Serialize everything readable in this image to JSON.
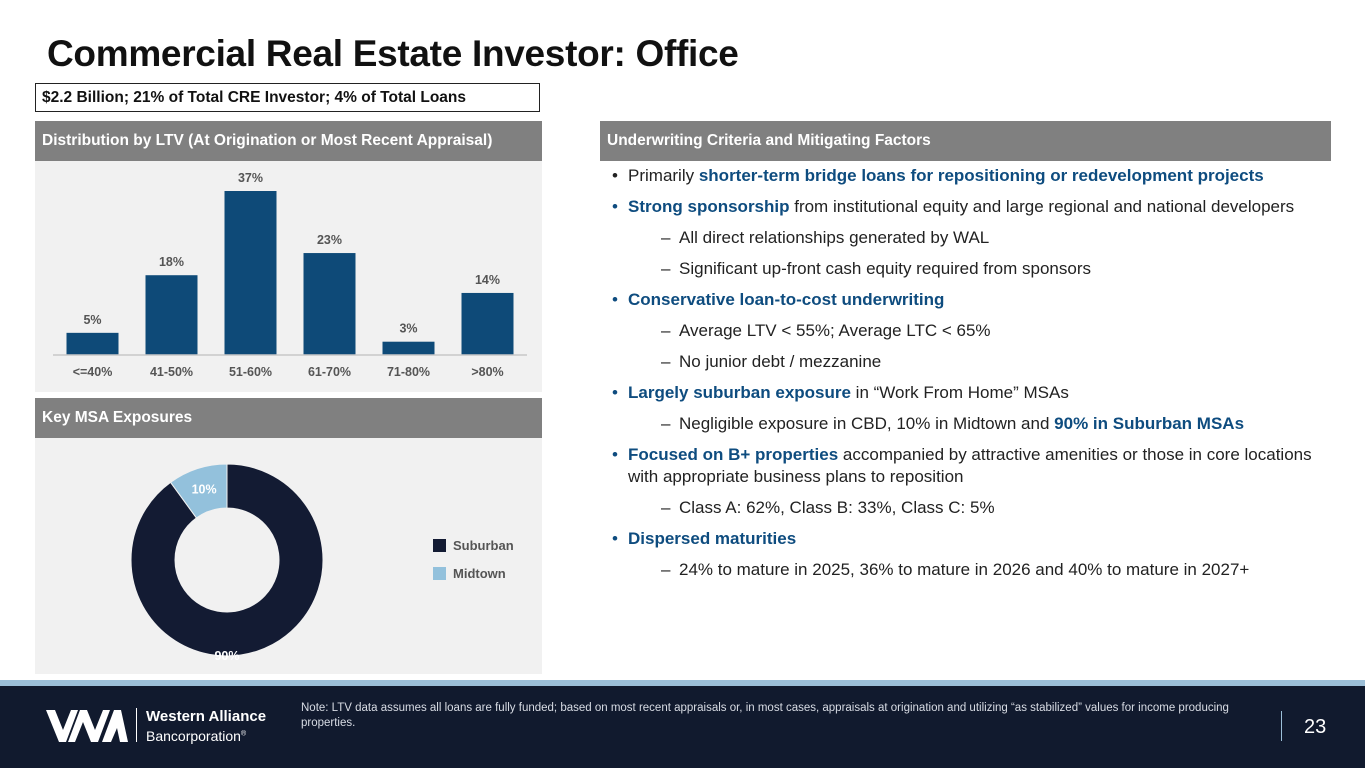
{
  "title": "Commercial Real Estate Investor: Office",
  "summary": "$2.2 Billion; 21% of Total CRE Investor; 4% of Total Loans",
  "ltv_panel": {
    "header": "Distribution by LTV (At Origination or Most Recent Appraisal)"
  },
  "msa_panel": {
    "header": "Key MSA Exposures"
  },
  "criteria_panel": {
    "header": "Underwriting Criteria and Mitigating Factors"
  },
  "chart_data": [
    {
      "type": "bar",
      "categories": [
        "<=40%",
        "41-50%",
        "51-60%",
        "61-70%",
        "71-80%",
        ">80%"
      ],
      "values": [
        5,
        18,
        37,
        23,
        3,
        14
      ],
      "labels": [
        "5%",
        "18%",
        "37%",
        "23%",
        "3%",
        "14%"
      ],
      "title": "",
      "xlabel": "",
      "ylabel": "",
      "ylim": [
        0,
        37
      ],
      "color": "#0e4a78",
      "grid": false
    },
    {
      "type": "pie",
      "donut": true,
      "categories": [
        "Suburban",
        "Midtown"
      ],
      "values": [
        90,
        10
      ],
      "labels": [
        "90%",
        "10%"
      ],
      "colors": [
        "#131b33",
        "#93c1dc"
      ],
      "legend": "right"
    }
  ],
  "criteria": [
    {
      "level": 1,
      "parts": [
        {
          "t": "Primarily "
        },
        {
          "t": "shorter-term bridge loans for repositioning or redevelopment projects",
          "hl": true
        }
      ]
    },
    {
      "level": 1,
      "parts": [
        {
          "t": "Strong sponsorship",
          "hl": true
        },
        {
          "t": " from institutional equity and large regional and national developers"
        }
      ]
    },
    {
      "level": 2,
      "parts": [
        {
          "t": "All direct relationships generated by WAL"
        }
      ]
    },
    {
      "level": 2,
      "parts": [
        {
          "t": "Significant up-front cash equity required from sponsors"
        }
      ]
    },
    {
      "level": 1,
      "parts": [
        {
          "t": "Conservative loan-to-cost underwriting",
          "hl": true
        }
      ]
    },
    {
      "level": 2,
      "parts": [
        {
          "t": "Average LTV < 55%; Average LTC < 65%"
        }
      ]
    },
    {
      "level": 2,
      "parts": [
        {
          "t": "No junior debt / mezzanine"
        }
      ]
    },
    {
      "level": 1,
      "parts": [
        {
          "t": "Largely suburban exposure",
          "hl": true
        },
        {
          "t": " in “Work From Home” MSAs"
        }
      ]
    },
    {
      "level": 2,
      "parts": [
        {
          "t": "Negligible exposure in CBD, 10% in Midtown and "
        },
        {
          "t": "90% in Suburban MSAs",
          "hl": true
        }
      ]
    },
    {
      "level": 1,
      "parts": [
        {
          "t": "Focused on B+ properties",
          "hl": true
        },
        {
          "t": " accompanied by attractive amenities or those in core locations with appropriate business plans to reposition"
        }
      ]
    },
    {
      "level": 2,
      "parts": [
        {
          "t": "Class A: 62%, Class B: 33%, Class C: 5%"
        }
      ]
    },
    {
      "level": 1,
      "parts": [
        {
          "t": "Dispersed maturities",
          "hl": true
        }
      ]
    },
    {
      "level": 2,
      "parts": [
        {
          "t": "24% to mature in 2025, 36% to mature in 2026 and 40% to mature in 2027+"
        }
      ]
    }
  ],
  "bullet_glyph": "•",
  "dash_glyph": "–",
  "footer": {
    "note": "Note: LTV data assumes all loans are fully funded; based on most recent appraisals or, in most cases, appraisals at origination and utilizing “as stabilized” values for income producing properties.",
    "logo_name": "Western Alliance",
    "logo_sub": "Bancorporation",
    "logo_reg": "®",
    "page_number": "23"
  },
  "colors": {
    "navy": "#111a2e",
    "accent_blue": "#0e4c7f",
    "header_gray": "#808080",
    "panel_bg": "#f1f1f1",
    "light_blue": "#9cbfd8"
  }
}
